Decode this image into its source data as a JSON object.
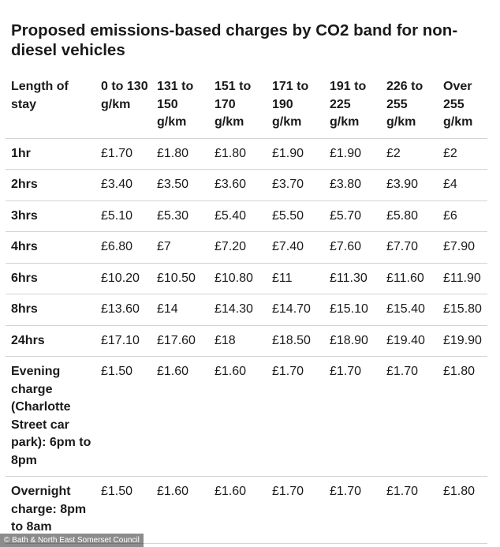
{
  "title": "Proposed emissions-based charges by CO2 band for non-diesel vehicles",
  "table": {
    "headers": [
      "Length of stay",
      "0 to 130 g/km",
      "131 to 150 g/km",
      "151 to 170 g/km",
      "171 to 190 g/km",
      "191 to 225 g/km",
      "226 to 255 g/km",
      "Over 255 g/km"
    ],
    "rows": [
      {
        "stay": "1hr",
        "values": [
          "£1.70",
          "£1.80",
          "£1.80",
          "£1.90",
          "£1.90",
          "£2",
          "£2"
        ]
      },
      {
        "stay": "2hrs",
        "values": [
          "£3.40",
          "£3.50",
          "£3.60",
          "£3.70",
          "£3.80",
          "£3.90",
          "£4"
        ]
      },
      {
        "stay": "3hrs",
        "values": [
          "£5.10",
          "£5.30",
          "£5.40",
          "£5.50",
          "£5.70",
          "£5.80",
          "£6"
        ]
      },
      {
        "stay": "4hrs",
        "values": [
          "£6.80",
          "£7",
          "£7.20",
          "£7.40",
          "£7.60",
          "£7.70",
          "£7.90"
        ]
      },
      {
        "stay": "6hrs",
        "values": [
          "£10.20",
          "£10.50",
          "£10.80",
          "£11",
          "£11.30",
          "£11.60",
          "£11.90"
        ]
      },
      {
        "stay": "8hrs",
        "values": [
          "£13.60",
          "£14",
          "£14.30",
          "£14.70",
          "£15.10",
          "£15.40",
          "£15.80"
        ]
      },
      {
        "stay": "24hrs",
        "values": [
          "£17.10",
          "£17.60",
          "£18",
          "£18.50",
          "£18.90",
          "£19.40",
          "£19.90"
        ]
      },
      {
        "stay": "Evening charge (Charlotte Street car park): 6pm to 8pm",
        "values": [
          "£1.50",
          "£1.60",
          "£1.60",
          "£1.70",
          "£1.70",
          "£1.70",
          "£1.80"
        ]
      },
      {
        "stay": "Overnight charge: 8pm to 8am",
        "values": [
          "£1.50",
          "£1.60",
          "£1.60",
          "£1.70",
          "£1.70",
          "£1.70",
          "£1.80"
        ]
      }
    ]
  },
  "credit": "© Bath & North East Somerset Council"
}
